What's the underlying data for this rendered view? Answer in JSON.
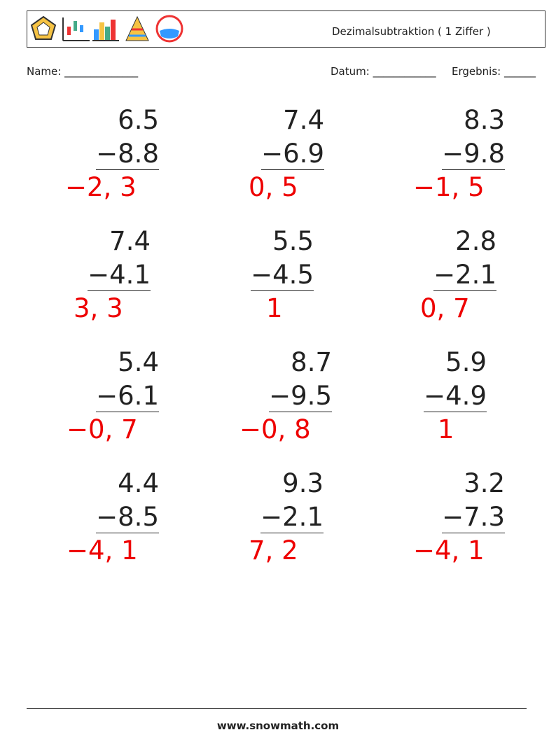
{
  "header": {
    "title": "Dezimalsubtraktion ( 1 Ziffer )"
  },
  "fields": {
    "name": "Name: ______________",
    "date": "Datum: ____________",
    "result": "Ergebnis: ______"
  },
  "problems": [
    {
      "top": "6.5",
      "bottom": "−8.8",
      "answer": "−2, 3"
    },
    {
      "top": "7.4",
      "bottom": "−6.9",
      "answer": "0, 5"
    },
    {
      "top": "8.3",
      "bottom": "−9.8",
      "answer": "−1, 5"
    },
    {
      "top": "7.4",
      "bottom": "−4.1",
      "answer": "3, 3"
    },
    {
      "top": "5.5",
      "bottom": "−4.5",
      "answer": "1"
    },
    {
      "top": "2.8",
      "bottom": "−2.1",
      "answer": "0, 7"
    },
    {
      "top": "5.4",
      "bottom": "−6.1",
      "answer": "−0, 7"
    },
    {
      "top": "8.7",
      "bottom": "−9.5",
      "answer": "−0, 8"
    },
    {
      "top": "5.9",
      "bottom": "−4.9",
      "answer": "1"
    },
    {
      "top": "4.4",
      "bottom": "−8.5",
      "answer": "−4, 1"
    },
    {
      "top": "9.3",
      "bottom": "−2.1",
      "answer": "7, 2"
    },
    {
      "top": "3.2",
      "bottom": "−7.3",
      "answer": "−4, 1"
    }
  ],
  "footer": "www.snowmath.com"
}
